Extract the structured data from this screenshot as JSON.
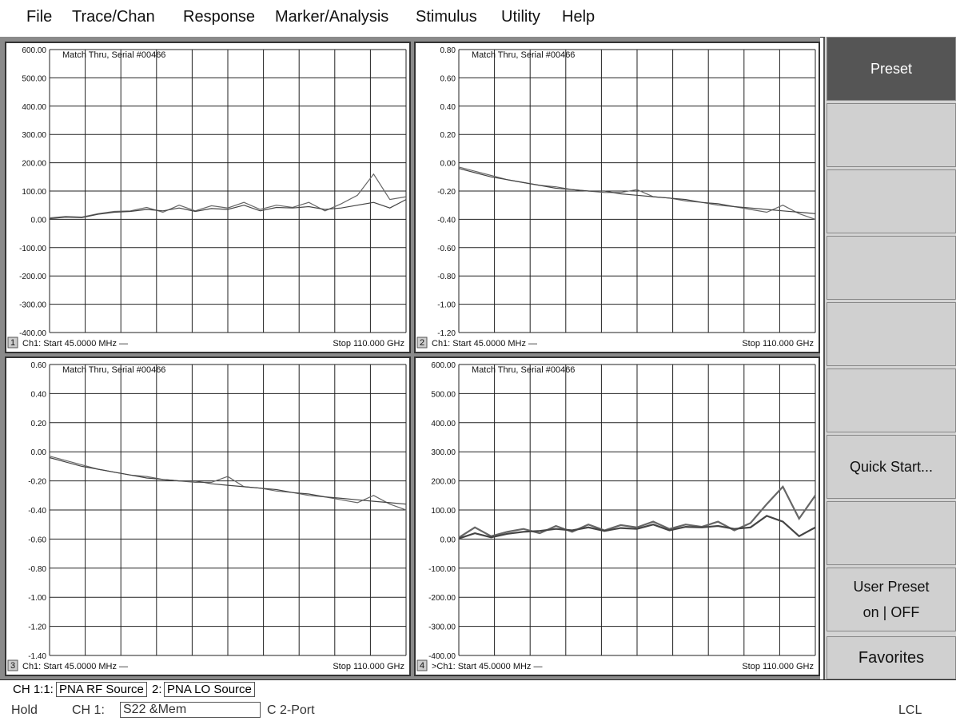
{
  "menu": [
    "File",
    "Trace/Chan",
    "Response",
    "Marker/Analysis",
    "Stimulus",
    "Utility",
    "Help"
  ],
  "panels": [
    {
      "number": "1",
      "title": "Match Thru, Serial #00466",
      "start": "Ch1: Start  45.0000 MHz —",
      "stop": "Stop  110.000 GHz",
      "y_ticks": [
        "600.00",
        "500.00",
        "400.00",
        "300.00",
        "200.00",
        "100.00",
        "0.00",
        "-100.00",
        "-200.00",
        "-300.00",
        "-400.00"
      ]
    },
    {
      "number": "2",
      "title": "Match Thru, Serial #00466",
      "start": "Ch1: Start  45.0000 MHz —",
      "stop": "Stop  110.000 GHz",
      "y_ticks": [
        "0.80",
        "0.60",
        "0.40",
        "0.20",
        "0.00",
        "-0.20",
        "-0.40",
        "-0.60",
        "-0.80",
        "-1.00",
        "-1.20"
      ]
    },
    {
      "number": "3",
      "title": "Match Thru, Serial #00466",
      "start": "Ch1: Start  45.0000 MHz —",
      "stop": "Stop  110.000 GHz",
      "y_ticks": [
        "0.60",
        "0.40",
        "0.20",
        "0.00",
        "-0.20",
        "-0.40",
        "-0.60",
        "-0.80",
        "-1.00",
        "-1.20",
        "-1.40"
      ]
    },
    {
      "number": "4",
      "title": "Match Thru, Serial #00466",
      "start": ">Ch1: Start  45.0000 MHz —",
      "stop": "Stop  110.000 GHz",
      "y_ticks": [
        "600.00",
        "500.00",
        "400.00",
        "300.00",
        "200.00",
        "100.00",
        "0.00",
        "-100.00",
        "-200.00",
        "-300.00",
        "-400.00"
      ]
    }
  ],
  "softkeys": [
    "Preset",
    "",
    "",
    "",
    "",
    "",
    "Quick Start...",
    "",
    "User Preset",
    "Favorites"
  ],
  "softkey_sub": "on | OFF",
  "status1": {
    "prefix": "CH 1:1:",
    "rf": "PNA RF Source",
    "lo_prefix": "2:",
    "lo": "PNA LO Source"
  },
  "status2": {
    "hold": "Hold",
    "ch": "CH 1:",
    "meas": "S22 &Mem",
    "cal": "C  2-Port",
    "lcl": "LCL"
  },
  "chart_data": [
    {
      "type": "line",
      "panel": "1",
      "xlim": [
        0.045,
        110
      ],
      "ylim": [
        -400,
        600
      ],
      "series": [
        {
          "x": [
            0.045,
            5,
            10,
            15,
            20,
            25,
            30,
            35,
            40,
            45,
            50,
            55,
            60,
            65,
            70,
            75,
            80,
            85,
            90,
            95,
            100,
            105,
            110
          ],
          "values": [
            5,
            10,
            8,
            20,
            28,
            30,
            42,
            25,
            50,
            30,
            48,
            40,
            60,
            35,
            50,
            42,
            60,
            30,
            55,
            85,
            160,
            70,
            80
          ]
        },
        {
          "x": [
            0.045,
            5,
            10,
            15,
            20,
            25,
            30,
            35,
            40,
            45,
            50,
            55,
            60,
            65,
            70,
            75,
            80,
            85,
            90,
            95,
            100,
            105,
            110
          ],
          "values": [
            2,
            8,
            6,
            18,
            25,
            28,
            35,
            30,
            40,
            28,
            38,
            35,
            50,
            30,
            42,
            40,
            45,
            35,
            40,
            50,
            60,
            40,
            70
          ]
        }
      ]
    },
    {
      "type": "line",
      "panel": "2",
      "xlim": [
        0.045,
        110
      ],
      "ylim": [
        -1.2,
        0.8
      ],
      "series": [
        {
          "x": [
            0.045,
            5,
            10,
            15,
            20,
            25,
            30,
            35,
            40,
            45,
            50,
            55,
            60,
            65,
            70,
            75,
            80,
            85,
            90,
            95,
            100,
            105,
            110
          ],
          "values": [
            -0.03,
            -0.06,
            -0.09,
            -0.12,
            -0.14,
            -0.16,
            -0.17,
            -0.19,
            -0.2,
            -0.21,
            -0.21,
            -0.19,
            -0.24,
            -0.25,
            -0.27,
            -0.28,
            -0.3,
            -0.31,
            -0.33,
            -0.35,
            -0.3,
            -0.36,
            -0.4
          ]
        },
        {
          "x": [
            0.045,
            5,
            10,
            15,
            20,
            25,
            30,
            35,
            40,
            45,
            50,
            55,
            60,
            65,
            70,
            75,
            80,
            85,
            90,
            95,
            100,
            105,
            110
          ],
          "values": [
            -0.04,
            -0.07,
            -0.1,
            -0.12,
            -0.14,
            -0.16,
            -0.18,
            -0.19,
            -0.2,
            -0.2,
            -0.22,
            -0.23,
            -0.24,
            -0.25,
            -0.26,
            -0.28,
            -0.29,
            -0.31,
            -0.32,
            -0.33,
            -0.34,
            -0.35,
            -0.36
          ]
        }
      ]
    },
    {
      "type": "line",
      "panel": "3",
      "xlim": [
        0.045,
        110
      ],
      "ylim": [
        -1.4,
        0.6
      ],
      "series": [
        {
          "x": [
            0.045,
            5,
            10,
            15,
            20,
            25,
            30,
            35,
            40,
            45,
            50,
            55,
            60,
            65,
            70,
            75,
            80,
            85,
            90,
            95,
            100,
            105,
            110
          ],
          "values": [
            -0.03,
            -0.06,
            -0.09,
            -0.12,
            -0.14,
            -0.16,
            -0.17,
            -0.19,
            -0.2,
            -0.21,
            -0.21,
            -0.17,
            -0.24,
            -0.25,
            -0.27,
            -0.28,
            -0.3,
            -0.31,
            -0.33,
            -0.35,
            -0.3,
            -0.36,
            -0.4
          ]
        },
        {
          "x": [
            0.045,
            5,
            10,
            15,
            20,
            25,
            30,
            35,
            40,
            45,
            50,
            55,
            60,
            65,
            70,
            75,
            80,
            85,
            90,
            95,
            100,
            105,
            110
          ],
          "values": [
            -0.04,
            -0.07,
            -0.1,
            -0.12,
            -0.14,
            -0.16,
            -0.18,
            -0.19,
            -0.2,
            -0.2,
            -0.22,
            -0.23,
            -0.24,
            -0.25,
            -0.26,
            -0.28,
            -0.29,
            -0.31,
            -0.32,
            -0.33,
            -0.34,
            -0.35,
            -0.36
          ]
        }
      ]
    },
    {
      "type": "line",
      "panel": "4",
      "xlim": [
        0.045,
        110
      ],
      "ylim": [
        -400,
        600
      ],
      "series": [
        {
          "x": [
            0.045,
            5,
            10,
            15,
            20,
            25,
            30,
            35,
            40,
            45,
            50,
            55,
            60,
            65,
            70,
            75,
            80,
            85,
            90,
            95,
            100,
            105,
            110
          ],
          "values": [
            5,
            40,
            10,
            25,
            35,
            20,
            45,
            25,
            50,
            30,
            48,
            40,
            60,
            35,
            50,
            42,
            60,
            30,
            55,
            120,
            180,
            70,
            150
          ]
        },
        {
          "x": [
            0.045,
            5,
            10,
            15,
            20,
            25,
            30,
            35,
            40,
            45,
            50,
            55,
            60,
            65,
            70,
            75,
            80,
            85,
            90,
            95,
            100,
            105,
            110
          ],
          "values": [
            2,
            20,
            6,
            18,
            25,
            28,
            35,
            30,
            40,
            28,
            38,
            35,
            50,
            30,
            42,
            40,
            45,
            35,
            40,
            80,
            60,
            10,
            40
          ]
        }
      ]
    }
  ]
}
